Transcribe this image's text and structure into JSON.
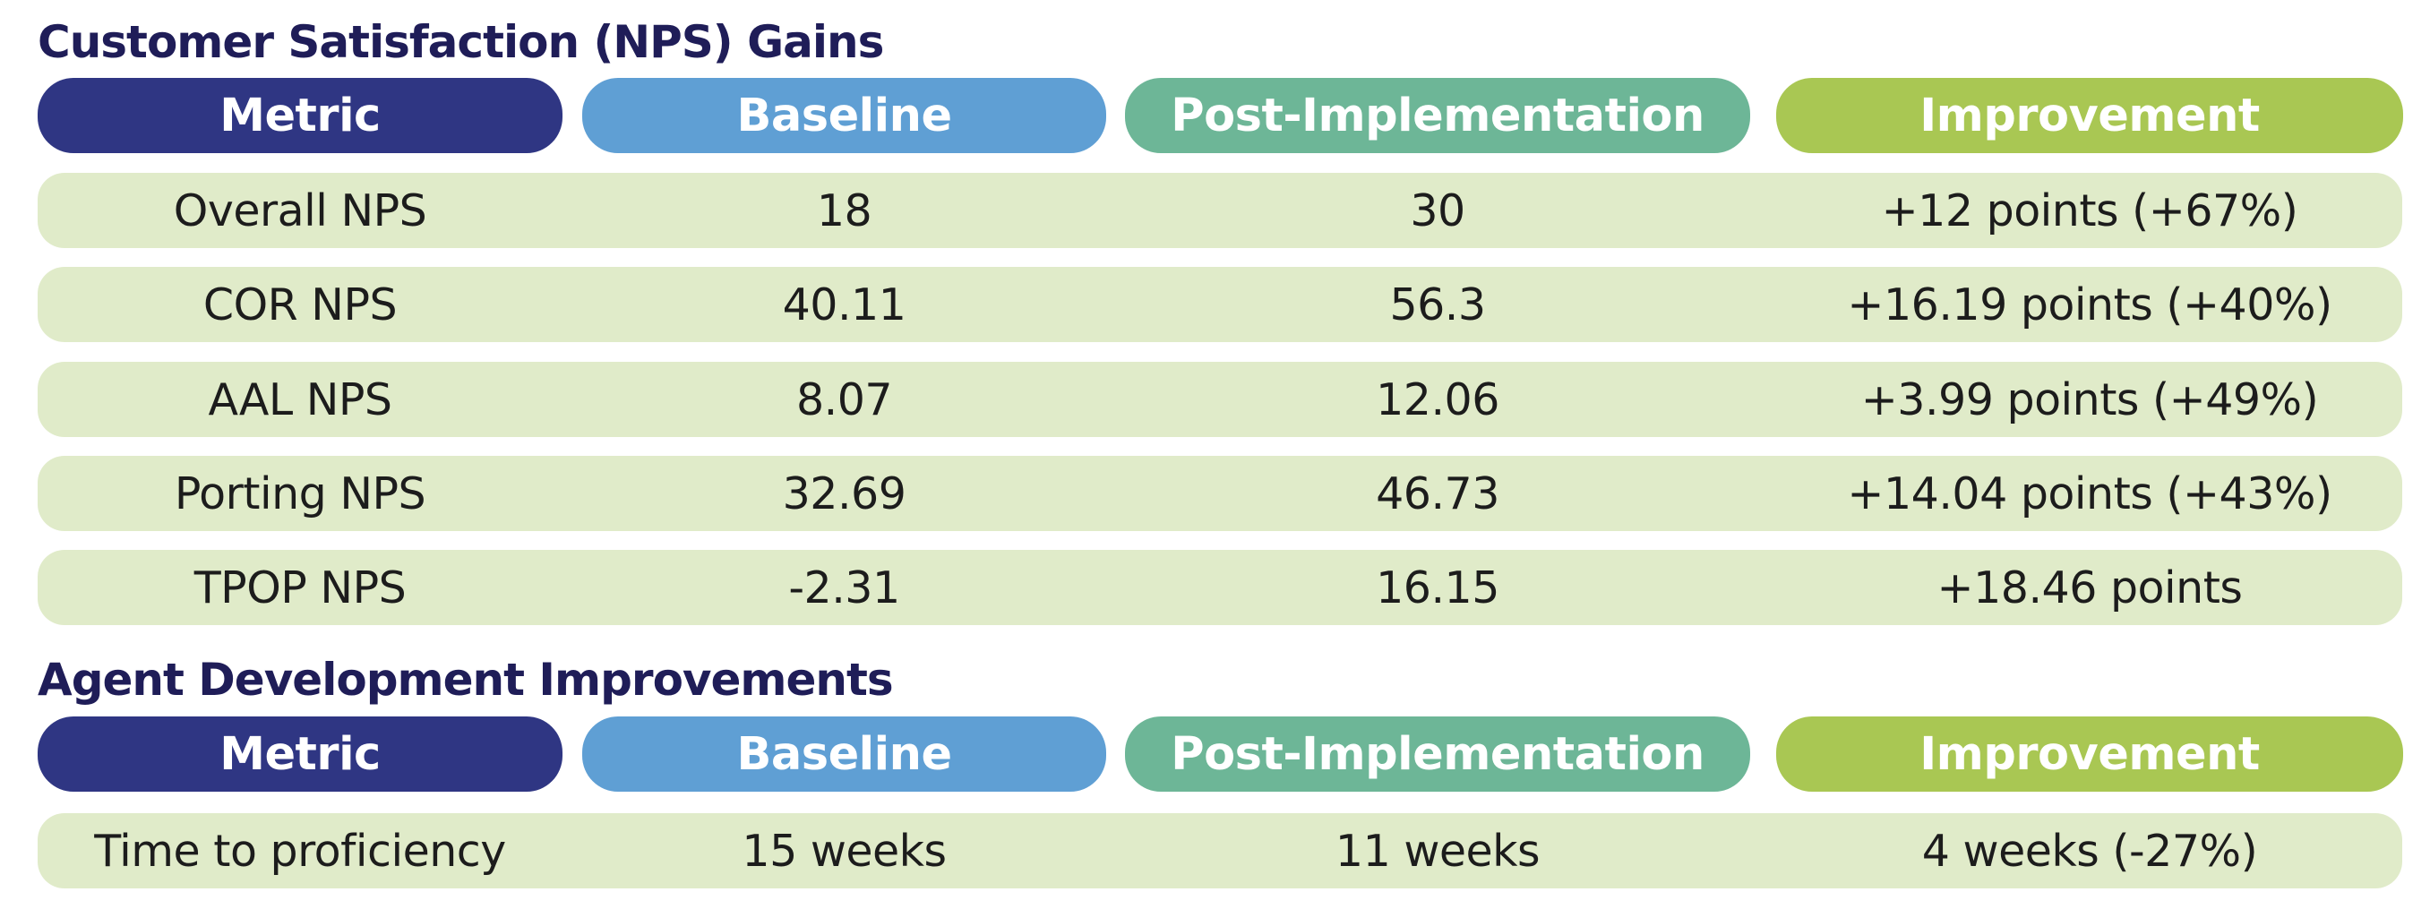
{
  "nps": {
    "title": "Customer Satisfaction (NPS) Gains",
    "headers": [
      "Metric",
      "Baseline",
      "Post-Implementation",
      "Improvement"
    ],
    "rows": [
      [
        "Overall NPS",
        "18",
        "30",
        "+12 points (+67%)"
      ],
      [
        "COR NPS",
        "40.11",
        "56.3",
        "+16.19 points (+40%)"
      ],
      [
        "AAL NPS",
        "8.07",
        "12.06",
        "+3.99 points (+49%)"
      ],
      [
        "Porting NPS",
        "32.69",
        "46.73",
        "+14.04 points (+43%)"
      ],
      [
        "TPOP NPS",
        "-2.31",
        "16.15",
        "+18.46 points"
      ]
    ]
  },
  "agent": {
    "title": "Agent Development Improvements",
    "headers": [
      "Metric",
      "Baseline",
      "Post-Implementation",
      "Improvement"
    ],
    "rows": [
      [
        "Time to proficiency",
        "15 weeks",
        "11 weeks",
        "4 weeks (-27%)"
      ]
    ]
  },
  "colors": {
    "title": "#1f1d58",
    "header_metric": "#2f3683",
    "header_baseline": "#5f9fd4",
    "header_post": "#6db697",
    "header_improvement": "#a9c753",
    "row_band": "#e0ebc9"
  }
}
